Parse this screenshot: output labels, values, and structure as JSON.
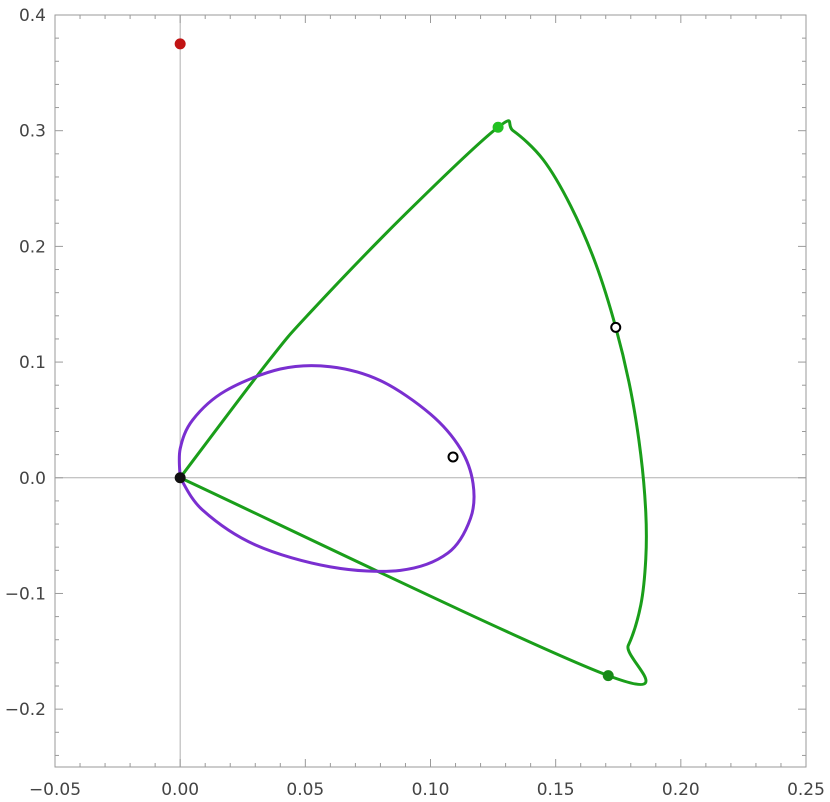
{
  "chart_data": {
    "type": "line",
    "title": "",
    "xlabel": "",
    "ylabel": "",
    "xlim": [
      -0.05,
      0.25
    ],
    "ylim": [
      -0.25,
      0.4
    ],
    "grid": false,
    "legend": "none",
    "x_ticks": [
      {
        "value": -0.05,
        "label": "−0.05"
      },
      {
        "value": 0.0,
        "label": "0.00"
      },
      {
        "value": 0.05,
        "label": "0.05"
      },
      {
        "value": 0.1,
        "label": "0.10"
      },
      {
        "value": 0.15,
        "label": "0.15"
      },
      {
        "value": 0.2,
        "label": "0.20"
      },
      {
        "value": 0.25,
        "label": "0.25"
      }
    ],
    "y_ticks": [
      {
        "value": -0.2,
        "label": "−0.2"
      },
      {
        "value": -0.1,
        "label": "−0.1"
      },
      {
        "value": 0.0,
        "label": "0.0"
      },
      {
        "value": 0.1,
        "label": "0.1"
      },
      {
        "value": 0.2,
        "label": "0.2"
      },
      {
        "value": 0.3,
        "label": "0.3"
      },
      {
        "value": 0.4,
        "label": "0.4"
      }
    ],
    "series": [
      {
        "color": "#1a9e1a",
        "closed": true,
        "points": [
          [
            0.0,
            0.0
          ],
          [
            0.035,
            0.1
          ],
          [
            0.052,
            0.143
          ],
          [
            0.09,
            0.228
          ],
          [
            0.127,
            0.303
          ],
          [
            0.133,
            0.3
          ],
          [
            0.145,
            0.275
          ],
          [
            0.156,
            0.235
          ],
          [
            0.166,
            0.185
          ],
          [
            0.174,
            0.13
          ],
          [
            0.18,
            0.075
          ],
          [
            0.184,
            0.02
          ],
          [
            0.186,
            -0.03
          ],
          [
            0.186,
            -0.07
          ],
          [
            0.184,
            -0.11
          ],
          [
            0.179,
            -0.145
          ],
          [
            0.171,
            -0.171
          ],
          [
            0.0,
            0.0
          ]
        ]
      },
      {
        "color": "#7a2fd0",
        "closed": true,
        "points": [
          [
            0.0,
            0.0
          ],
          [
            0.0,
            0.025
          ],
          [
            0.005,
            0.05
          ],
          [
            0.018,
            0.075
          ],
          [
            0.04,
            0.094
          ],
          [
            0.06,
            0.096
          ],
          [
            0.08,
            0.084
          ],
          [
            0.1,
            0.055
          ],
          [
            0.112,
            0.025
          ],
          [
            0.117,
            -0.005
          ],
          [
            0.116,
            -0.035
          ],
          [
            0.107,
            -0.065
          ],
          [
            0.088,
            -0.08
          ],
          [
            0.06,
            -0.077
          ],
          [
            0.03,
            -0.058
          ],
          [
            0.009,
            -0.028
          ],
          [
            0.0,
            0.0
          ]
        ]
      }
    ],
    "markers": [
      {
        "x": 0.0,
        "y": 0.375,
        "fill": "#c11414",
        "stroke": "#c11414"
      },
      {
        "x": 0.127,
        "y": 0.303,
        "fill": "#22c122",
        "stroke": "#22c122"
      },
      {
        "x": 0.171,
        "y": -0.171,
        "fill": "#188a18",
        "stroke": "#188a18"
      },
      {
        "x": 0.0,
        "y": 0.0,
        "fill": "#111111",
        "stroke": "#111111"
      },
      {
        "x": 0.109,
        "y": 0.018,
        "fill": "#ffffff",
        "stroke": "#000000"
      },
      {
        "x": 0.174,
        "y": 0.13,
        "fill": "#ffffff",
        "stroke": "#000000"
      }
    ]
  }
}
